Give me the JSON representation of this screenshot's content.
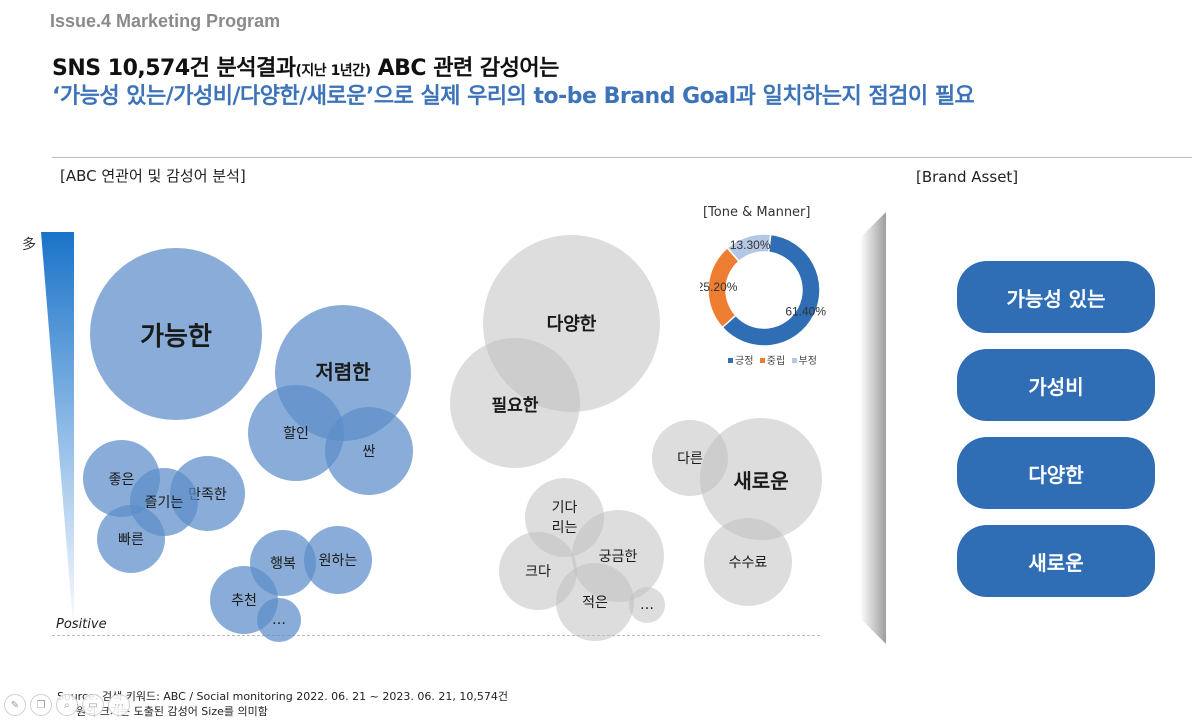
{
  "header": {
    "issue": "Issue.4 Marketing Program",
    "title_line1_main": "SNS 10,574건 분석결과",
    "title_line1_small": "(지난 1년간)",
    "title_line1_rest": "ABC 관련 감성어는",
    "title_line2": "‘가능성 있는/가성비/다양한/새로운’으로 실제 우리의 to-be Brand Goal과 일치하는지 점검이 필요"
  },
  "left_section": {
    "title": "[ABC 연관어 및 감성어 분석]",
    "axis_top": "多",
    "axis_bottom": "Positive",
    "bubbles": {
      "b1": "가능한",
      "b2": "저렴한",
      "b3": "할인",
      "b4": "싼",
      "b5": "좋은",
      "b6": "즐기는",
      "b7": "만족한",
      "b8": "빠른",
      "b9": "행복",
      "b10": "원하는",
      "b11": "추천",
      "b12": "…",
      "b13": "다양한",
      "b14": "필요한",
      "b15": "다른",
      "b16": "새로운",
      "b17": "기다\n리는",
      "b18": "궁금한",
      "b19": "크다",
      "b20": "적은",
      "b21": "…",
      "b22": "수수료"
    }
  },
  "tone_manner": {
    "title": "[Tone & Manner]",
    "legend": [
      "긍정",
      "중립",
      "부정"
    ]
  },
  "chart_data": {
    "type": "pie",
    "title": "[Tone & Manner]",
    "categories": [
      "긍정",
      "중립",
      "부정"
    ],
    "values": [
      61.4,
      25.2,
      13.3
    ],
    "labels": [
      "61.40%",
      "25.20%",
      "13.30%"
    ],
    "colors": [
      "#2f6db4",
      "#ed7d31",
      "#b4c7e7"
    ],
    "legend_position": "bottom"
  },
  "right_section": {
    "title": "[Brand Asset]",
    "assets": [
      "가능성 있는",
      "가성비",
      "다양한",
      "새로운"
    ]
  },
  "source": {
    "line1": "Source: 검색 키워드: ABC / Social monitoring 2022. 06. 21 ~ 2023. 06. 21, 10,574건",
    "line2": "원의 크기는 도출된 감성어  Size를 의미함"
  },
  "toolbar": [
    "pen-icon",
    "copy-icon",
    "zoom-icon",
    "fit-icon",
    "more-icon"
  ]
}
